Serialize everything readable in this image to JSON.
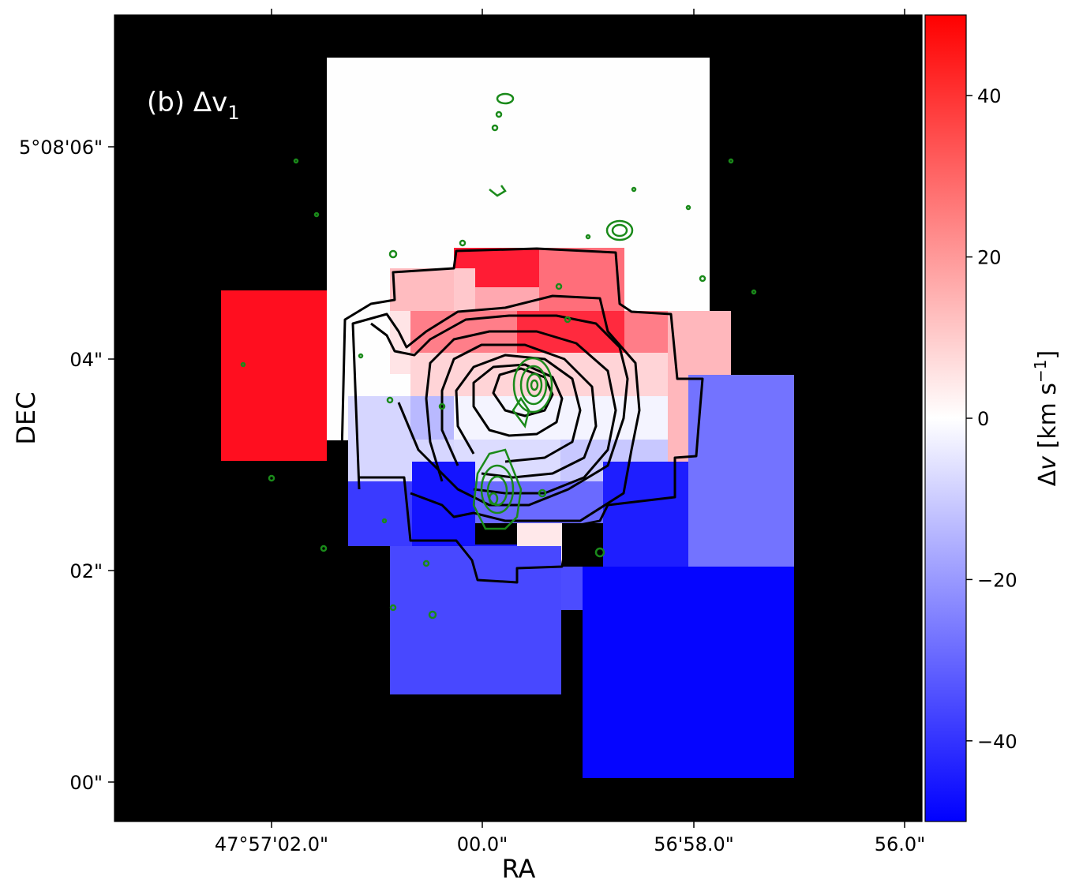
{
  "chart_data": {
    "type": "heatmap",
    "title": "",
    "panel_label": "(b) Δv",
    "panel_label_subscript": "1",
    "xlabel": "RA",
    "ylabel": "DEC",
    "x_ticks": [
      "47°57'02.0\"",
      "00.0\"",
      "56'58.0\"",
      "56.0\""
    ],
    "y_ticks": [
      "5°08'06\"",
      "04\"",
      "02\"",
      "00\""
    ],
    "colorbar": {
      "label": "Δv [km s⁻¹]",
      "label_main": "Δ",
      "label_var": "v",
      "label_unit": " [km s",
      "label_exp": "−1",
      "label_close": "]",
      "range": [
        -50,
        50
      ],
      "ticks": [
        "40",
        "20",
        "0",
        "−20",
        "−40"
      ],
      "tick_values": [
        40,
        20,
        0,
        -20,
        -40
      ],
      "colormap": "bwr"
    },
    "background": "#000000",
    "contour_colors": {
      "black_contours": "#000000",
      "green_contours": "#008000"
    },
    "cells_dv_kms": [
      {
        "ra_sec": 0.3,
        "dec_sec": 4.0,
        "dv": 0
      },
      {
        "ra_sec": -1.6,
        "dec_sec": 3.8,
        "dv": 45
      },
      {
        "ra_sec": 0.9,
        "dec_sec": 4.8,
        "dv": 45
      },
      {
        "ra_sec": 1.6,
        "dec_sec": 4.8,
        "dv": 25
      },
      {
        "ra_sec": 1.3,
        "dec_sec": 4.3,
        "dv": 40
      },
      {
        "ra_sec": 2.7,
        "dec_sec": 3.8,
        "dv": 15
      },
      {
        "ra_sec": -0.6,
        "dec_sec": 4.4,
        "dv": 15
      },
      {
        "ra_sec": 0.4,
        "dec_sec": 3.4,
        "dv": -2
      },
      {
        "ra_sec": -0.7,
        "dec_sec": 3.1,
        "dv": -15
      },
      {
        "ra_sec": 2.0,
        "dec_sec": 3.1,
        "dv": -8
      },
      {
        "ra_sec": -0.4,
        "dec_sec": 2.6,
        "dv": -42
      },
      {
        "ra_sec": 0.2,
        "dec_sec": 2.3,
        "dv": -30
      },
      {
        "ra_sec": 1.4,
        "dec_sec": 2.2,
        "dv": -35
      },
      {
        "ra_sec": 3.0,
        "dec_sec": 2.7,
        "dv": -28
      },
      {
        "ra_sec": -0.7,
        "dec_sec": 1.3,
        "dv": -33
      },
      {
        "ra_sec": 3.0,
        "dec_sec": 1.1,
        "dv": -50
      }
    ]
  }
}
